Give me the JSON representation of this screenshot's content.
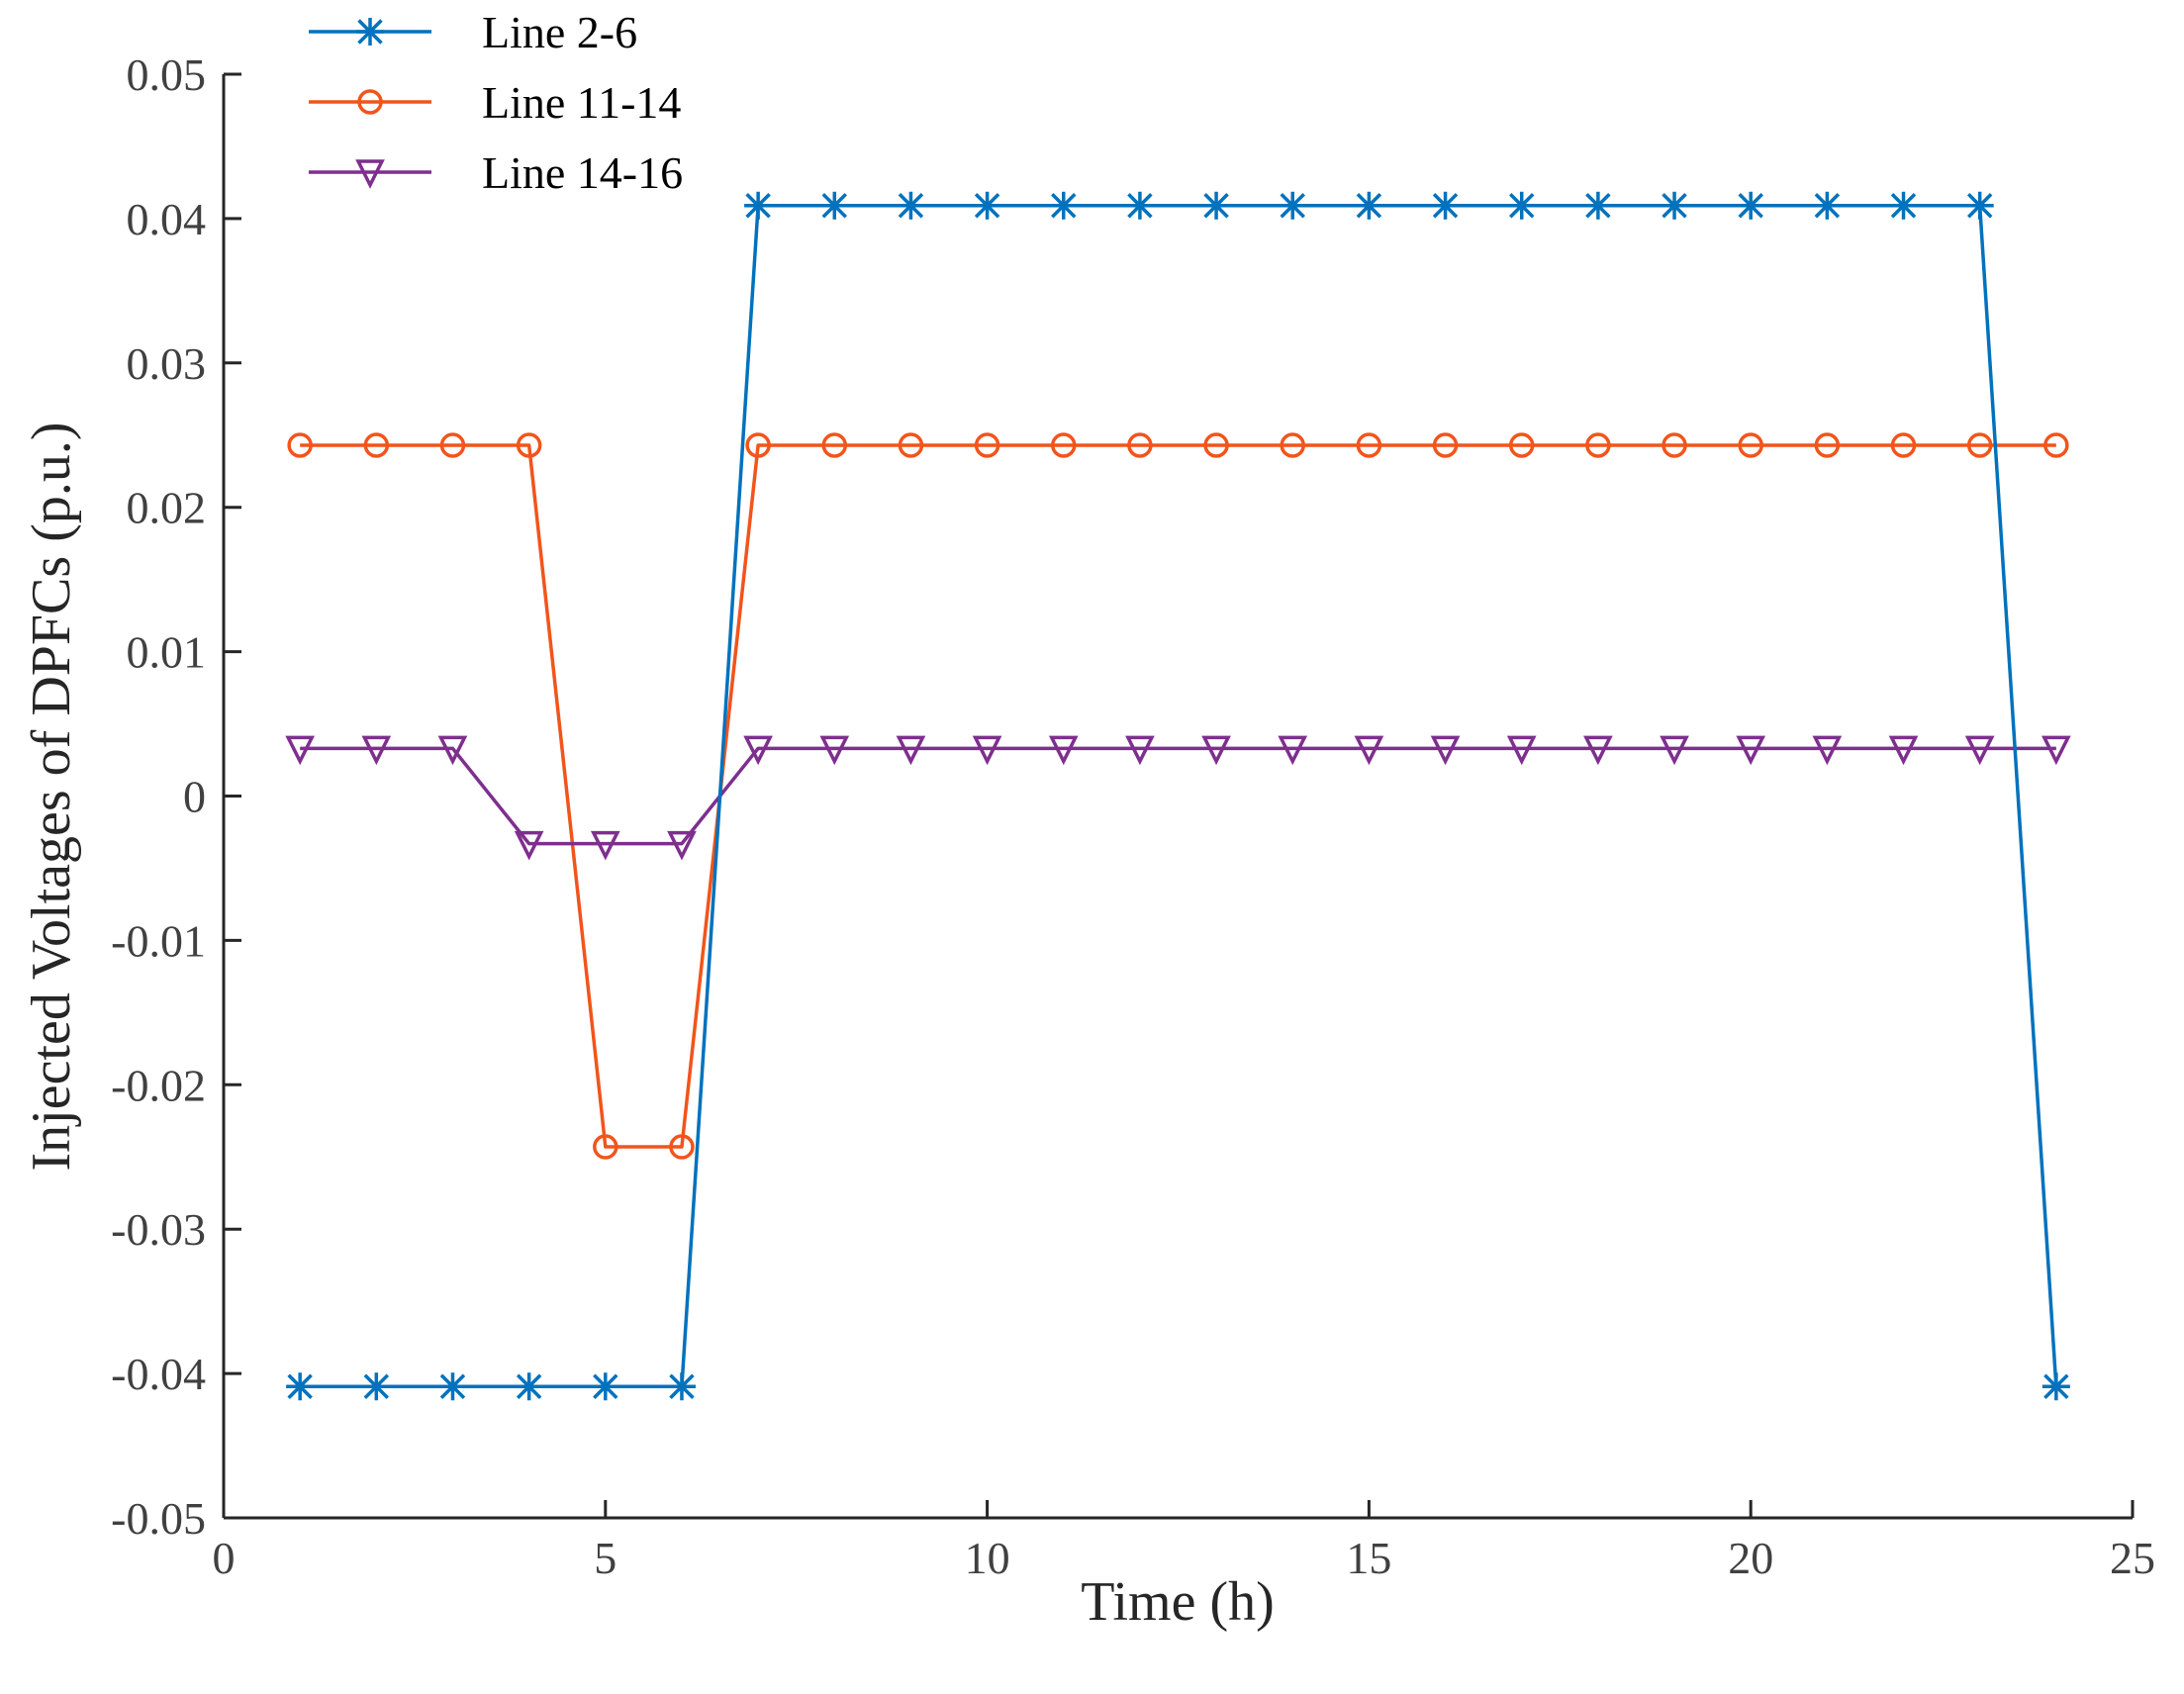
{
  "chart_data": {
    "type": "line",
    "title": "",
    "xlabel": "Time (h)",
    "ylabel": "Injected Voltages of DPFCs (p.u.)",
    "xlim": [
      0,
      25
    ],
    "ylim": [
      -0.05,
      0.05
    ],
    "xticks": [
      0,
      5,
      10,
      15,
      20,
      25
    ],
    "xtick_labels": [
      "0",
      "5",
      "10",
      "15",
      "20",
      "25"
    ],
    "yticks": [
      -0.05,
      -0.04,
      -0.03,
      -0.02,
      -0.01,
      0,
      0.01,
      0.02,
      0.03,
      0.04,
      0.05
    ],
    "ytick_labels": [
      "-0.05",
      "-0.04",
      "-0.03",
      "-0.02",
      "-0.01",
      "0",
      "0.01",
      "0.02",
      "0.03",
      "0.04",
      "0.05"
    ],
    "grid": false,
    "legend_position": "top-left",
    "x": [
      1,
      2,
      3,
      4,
      5,
      6,
      7,
      8,
      9,
      10,
      11,
      12,
      13,
      14,
      15,
      16,
      17,
      18,
      19,
      20,
      21,
      22,
      23,
      24
    ],
    "series": [
      {
        "name": "Line 2-6",
        "color": "#0072BD",
        "marker": "asterisk",
        "values": [
          -0.0409,
          -0.0409,
          -0.0409,
          -0.0409,
          -0.0409,
          -0.0409,
          0.0409,
          0.0409,
          0.0409,
          0.0409,
          0.0409,
          0.0409,
          0.0409,
          0.0409,
          0.0409,
          0.0409,
          0.0409,
          0.0409,
          0.0409,
          0.0409,
          0.0409,
          0.0409,
          0.0409,
          -0.0409
        ]
      },
      {
        "name": "Line 11-14",
        "color": "#F2541B",
        "marker": "circle",
        "values": [
          0.0243,
          0.0243,
          0.0243,
          0.0243,
          -0.0243,
          -0.0243,
          0.0243,
          0.0243,
          0.0243,
          0.0243,
          0.0243,
          0.0243,
          0.0243,
          0.0243,
          0.0243,
          0.0243,
          0.0243,
          0.0243,
          0.0243,
          0.0243,
          0.0243,
          0.0243,
          0.0243,
          0.0243
        ]
      },
      {
        "name": "Line 14-16",
        "color": "#7E2F8E",
        "marker": "triangle-down",
        "values": [
          0.0033,
          0.0033,
          0.0033,
          -0.0033,
          -0.0033,
          -0.0033,
          0.0033,
          0.0033,
          0.0033,
          0.0033,
          0.0033,
          0.0033,
          0.0033,
          0.0033,
          0.0033,
          0.0033,
          0.0033,
          0.0033,
          0.0033,
          0.0033,
          0.0033,
          0.0033,
          0.0033,
          0.0033
        ]
      }
    ]
  }
}
